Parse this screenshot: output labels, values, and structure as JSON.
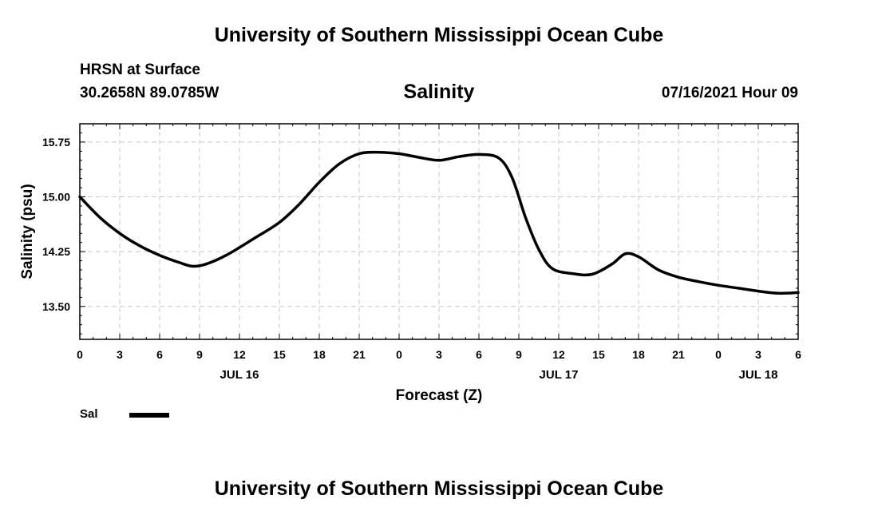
{
  "header": {
    "top_title": "University of Southern Mississippi Ocean Cube",
    "station": "HRSN at Surface",
    "coordinates": "30.2658N  89.0785W",
    "chart_title": "Salinity",
    "datetime": "07/16/2021 Hour 09",
    "bottom_title": "University of Southern Mississippi Ocean Cube"
  },
  "legend": {
    "series_label": "Sal",
    "series_color": "#000000"
  },
  "chart_data": {
    "type": "line",
    "title": "Salinity",
    "xlabel": "Forecast (Z)",
    "ylabel": "Salinity (psu)",
    "xlim": [
      0,
      54
    ],
    "ylim": [
      13.05,
      16.0
    ],
    "grid": true,
    "legend_position": "bottom-left",
    "x_ticks": [
      0,
      3,
      6,
      9,
      12,
      15,
      18,
      21,
      24,
      27,
      30,
      33,
      36,
      39,
      42,
      45,
      48,
      51,
      54
    ],
    "x_tick_labels": [
      "0",
      "3",
      "6",
      "9",
      "12",
      "15",
      "18",
      "21",
      "0",
      "3",
      "6",
      "9",
      "12",
      "15",
      "18",
      "21",
      "0",
      "3",
      "6"
    ],
    "y_ticks": [
      13.5,
      14.25,
      15.0,
      15.75
    ],
    "y_tick_labels": [
      "13.50",
      "14.25",
      "15.00",
      "15.75"
    ],
    "day_labels": [
      {
        "x": 12,
        "label": "JUL 16"
      },
      {
        "x": 36,
        "label": "JUL 17"
      },
      {
        "x": 51,
        "label": "JUL 18"
      }
    ],
    "series": [
      {
        "name": "Sal",
        "x": [
          0,
          1.5,
          3,
          4.5,
          6,
          7.5,
          8.5,
          9.5,
          11,
          13,
          15,
          16.5,
          18,
          19.5,
          21,
          22.5,
          24,
          25.5,
          27,
          28.5,
          30,
          31.5,
          32.5,
          33.5,
          34.5,
          35.5,
          37,
          38.5,
          40,
          41,
          42,
          43.5,
          45,
          46.5,
          48,
          49.5,
          51,
          52.5,
          54
        ],
        "y": [
          15.0,
          14.72,
          14.5,
          14.33,
          14.2,
          14.1,
          14.05,
          14.08,
          14.2,
          14.42,
          14.65,
          14.9,
          15.2,
          15.45,
          15.59,
          15.61,
          15.59,
          15.54,
          15.5,
          15.55,
          15.58,
          15.53,
          15.26,
          14.72,
          14.28,
          14.02,
          13.95,
          13.94,
          14.08,
          14.22,
          14.18,
          14.0,
          13.9,
          13.84,
          13.79,
          13.75,
          13.71,
          13.68,
          13.69
        ]
      }
    ]
  }
}
